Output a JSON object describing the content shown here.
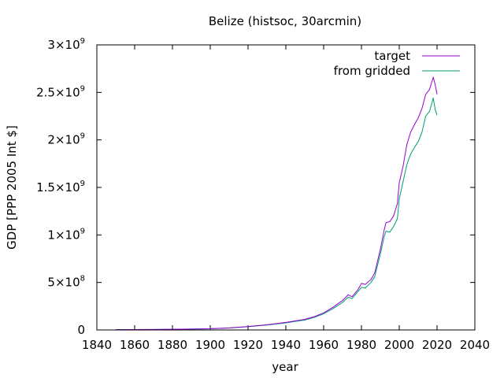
{
  "chart_data": {
    "type": "line",
    "title": "Belize (histsoc, 30arcmin)",
    "xlabel": "year",
    "ylabel": "GDP [PPP 2005 Int $]",
    "xlim": [
      1840,
      2040
    ],
    "ylim": [
      0,
      3000000000
    ],
    "x_ticks": [
      {
        "value": 1840,
        "label": "1840"
      },
      {
        "value": 1860,
        "label": "1860"
      },
      {
        "value": 1880,
        "label": "1880"
      },
      {
        "value": 1900,
        "label": "1900"
      },
      {
        "value": 1920,
        "label": "1920"
      },
      {
        "value": 1940,
        "label": "1940"
      },
      {
        "value": 1960,
        "label": "1960"
      },
      {
        "value": 1980,
        "label": "1980"
      },
      {
        "value": 2000,
        "label": "2000"
      },
      {
        "value": 2020,
        "label": "2020"
      },
      {
        "value": 2040,
        "label": "2040"
      }
    ],
    "y_ticks": [
      {
        "value": 0,
        "mantissa": "0",
        "exponent": ""
      },
      {
        "value": 500000000,
        "mantissa": "5×10",
        "exponent": "8"
      },
      {
        "value": 1000000000,
        "mantissa": "1×10",
        "exponent": "9"
      },
      {
        "value": 1500000000,
        "mantissa": "1.5×10",
        "exponent": "9"
      },
      {
        "value": 2000000000,
        "mantissa": "2×10",
        "exponent": "9"
      },
      {
        "value": 2500000000,
        "mantissa": "2.5×10",
        "exponent": "9"
      },
      {
        "value": 3000000000,
        "mantissa": "3×10",
        "exponent": "9"
      }
    ],
    "grid": false,
    "legend_position": "top-right",
    "series": [
      {
        "name": "target",
        "color": "#9400d3",
        "points": [
          [
            1850,
            3000000
          ],
          [
            1860,
            4000000
          ],
          [
            1870,
            5000000
          ],
          [
            1880,
            7000000
          ],
          [
            1890,
            9000000
          ],
          [
            1900,
            13000000
          ],
          [
            1910,
            22000000
          ],
          [
            1920,
            36000000
          ],
          [
            1930,
            55000000
          ],
          [
            1940,
            80000000
          ],
          [
            1945,
            95000000
          ],
          [
            1950,
            112000000
          ],
          [
            1955,
            140000000
          ],
          [
            1960,
            180000000
          ],
          [
            1965,
            240000000
          ],
          [
            1970,
            310000000
          ],
          [
            1973,
            370000000
          ],
          [
            1975,
            350000000
          ],
          [
            1978,
            420000000
          ],
          [
            1980,
            490000000
          ],
          [
            1982,
            480000000
          ],
          [
            1985,
            530000000
          ],
          [
            1987,
            600000000
          ],
          [
            1990,
            850000000
          ],
          [
            1992,
            1050000000
          ],
          [
            1993,
            1130000000
          ],
          [
            1995,
            1140000000
          ],
          [
            1997,
            1200000000
          ],
          [
            1999,
            1330000000
          ],
          [
            2000,
            1550000000
          ],
          [
            2002,
            1720000000
          ],
          [
            2004,
            1950000000
          ],
          [
            2006,
            2080000000
          ],
          [
            2008,
            2160000000
          ],
          [
            2010,
            2230000000
          ],
          [
            2012,
            2330000000
          ],
          [
            2014,
            2480000000
          ],
          [
            2016,
            2530000000
          ],
          [
            2018,
            2660000000
          ],
          [
            2019,
            2580000000
          ],
          [
            2020,
            2480000000
          ]
        ]
      },
      {
        "name": "from gridded",
        "color": "#009e73",
        "points": [
          [
            1850,
            3000000
          ],
          [
            1860,
            4000000
          ],
          [
            1870,
            5000000
          ],
          [
            1880,
            7000000
          ],
          [
            1890,
            9000000
          ],
          [
            1900,
            12000000
          ],
          [
            1910,
            21000000
          ],
          [
            1920,
            34000000
          ],
          [
            1930,
            52000000
          ],
          [
            1940,
            75000000
          ],
          [
            1945,
            90000000
          ],
          [
            1950,
            105000000
          ],
          [
            1955,
            132000000
          ],
          [
            1960,
            170000000
          ],
          [
            1965,
            225000000
          ],
          [
            1970,
            290000000
          ],
          [
            1973,
            345000000
          ],
          [
            1975,
            330000000
          ],
          [
            1978,
            400000000
          ],
          [
            1980,
            450000000
          ],
          [
            1982,
            440000000
          ],
          [
            1985,
            500000000
          ],
          [
            1987,
            560000000
          ],
          [
            1990,
            800000000
          ],
          [
            1992,
            980000000
          ],
          [
            1993,
            1040000000
          ],
          [
            1995,
            1030000000
          ],
          [
            1997,
            1090000000
          ],
          [
            1999,
            1170000000
          ],
          [
            2000,
            1380000000
          ],
          [
            2002,
            1560000000
          ],
          [
            2004,
            1740000000
          ],
          [
            2006,
            1850000000
          ],
          [
            2008,
            1920000000
          ],
          [
            2010,
            1980000000
          ],
          [
            2012,
            2080000000
          ],
          [
            2014,
            2250000000
          ],
          [
            2016,
            2300000000
          ],
          [
            2018,
            2440000000
          ],
          [
            2019,
            2320000000
          ],
          [
            2020,
            2260000000
          ]
        ]
      }
    ]
  }
}
